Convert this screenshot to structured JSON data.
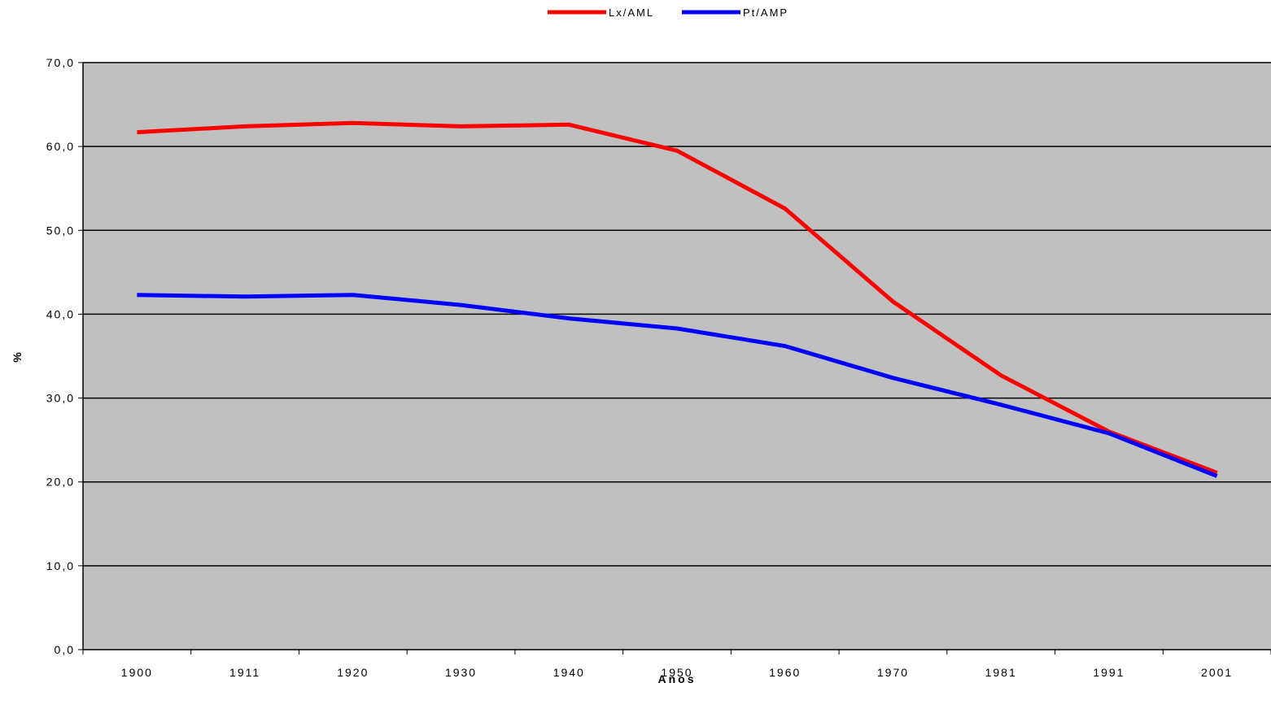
{
  "chart_data": {
    "type": "line",
    "title": "",
    "xlabel": "Anos",
    "ylabel": "%",
    "ylim": [
      0,
      70
    ],
    "y_ticks": [
      "0,0",
      "10,0",
      "20,0",
      "30,0",
      "40,0",
      "50,0",
      "60,0",
      "70,0"
    ],
    "categories": [
      "1900",
      "1911",
      "1920",
      "1930",
      "1940",
      "1950",
      "1960",
      "1970",
      "1981",
      "1991",
      "2001"
    ],
    "grid": true,
    "legend_position": "top",
    "plot_background": "#c0c0c0",
    "series": [
      {
        "name": "Lx/AML",
        "color": "#ff0000",
        "values": [
          61.7,
          62.4,
          62.8,
          62.4,
          62.6,
          59.5,
          52.6,
          41.5,
          32.7,
          26.0,
          21.1
        ]
      },
      {
        "name": "Pt/AMP",
        "color": "#0000ff",
        "values": [
          42.3,
          42.1,
          42.3,
          41.1,
          39.5,
          38.3,
          36.2,
          32.4,
          29.2,
          25.8,
          20.7
        ]
      }
    ]
  }
}
